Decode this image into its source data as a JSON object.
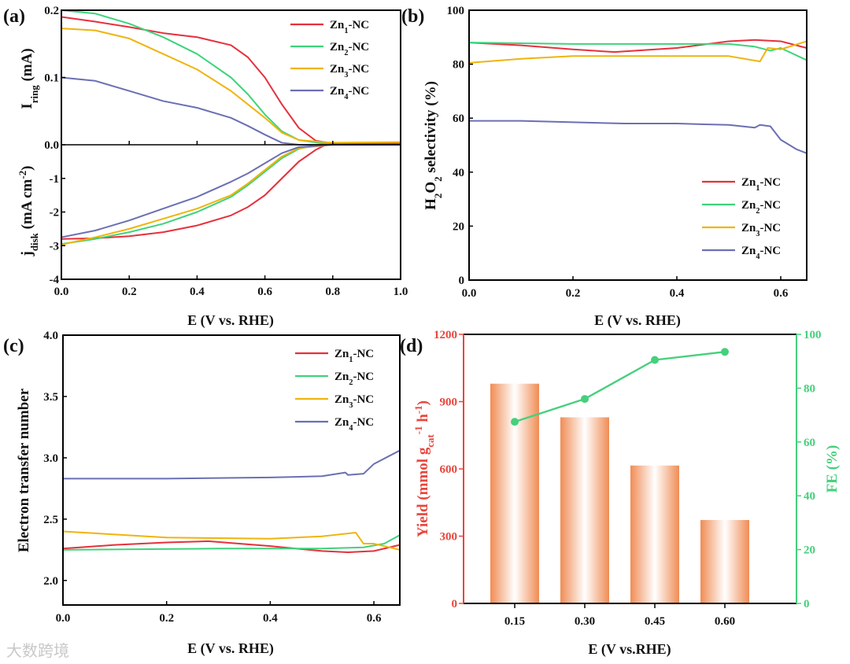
{
  "colors": {
    "Zn1-NC": "#e6303c",
    "Zn2-NC": "#3ed37c",
    "Zn3-NC": "#efb40c",
    "Zn4-NC": "#6b6fb3",
    "bar": "#f08c55",
    "yield_axis": "#e8453c",
    "fe_axis": "#45d07c"
  },
  "watermark": "大数跨境",
  "chart_data": [
    {
      "panel": "(a)",
      "type": "line",
      "xlabel": [
        {
          "t": "E (V vs. RHE)"
        }
      ],
      "ylabel_top": [
        {
          "t": "I"
        },
        {
          "t": "ring",
          "sub": true
        },
        {
          "t": " (mA)"
        }
      ],
      "ylabel_bottom": [
        {
          "t": "j"
        },
        {
          "t": "disk",
          "sub": true
        },
        {
          "t": " (mA cm"
        },
        {
          "t": "-2",
          "sup": true
        },
        {
          "t": ")"
        }
      ],
      "xlim": [
        0,
        1.0
      ],
      "xticks": [
        "0.0",
        "0.2",
        "0.4",
        "0.6",
        "0.8",
        "1.0"
      ],
      "ylim_ring": [
        0,
        0.2
      ],
      "yticks_ring": [
        "0.0",
        "0.1",
        "0.2"
      ],
      "ylim_disk": [
        -4,
        0
      ],
      "yticks_disk": [
        "-1",
        "-2",
        "-3",
        "-4"
      ],
      "legend": "top-right",
      "ring_series": [
        {
          "name": "Zn1-NC",
          "x": [
            0,
            0.1,
            0.2,
            0.3,
            0.4,
            0.5,
            0.55,
            0.6,
            0.65,
            0.7,
            0.75,
            0.8,
            1.0
          ],
          "y": [
            0.19,
            0.183,
            0.175,
            0.166,
            0.16,
            0.148,
            0.13,
            0.1,
            0.06,
            0.025,
            0.006,
            0.002,
            0.002
          ]
        },
        {
          "name": "Zn2-NC",
          "x": [
            0,
            0.1,
            0.2,
            0.3,
            0.4,
            0.5,
            0.55,
            0.6,
            0.65,
            0.7,
            0.8,
            0.95
          ],
          "y": [
            0.2,
            0.195,
            0.18,
            0.16,
            0.135,
            0.1,
            0.075,
            0.045,
            0.02,
            0.007,
            0,
            0
          ]
        },
        {
          "name": "Zn3-NC",
          "x": [
            0,
            0.1,
            0.2,
            0.3,
            0.4,
            0.5,
            0.55,
            0.6,
            0.65,
            0.7,
            0.8,
            1.0
          ],
          "y": [
            0.173,
            0.17,
            0.158,
            0.135,
            0.112,
            0.08,
            0.06,
            0.04,
            0.018,
            0.007,
            0.003,
            0.004
          ]
        },
        {
          "name": "Zn4-NC",
          "x": [
            0,
            0.1,
            0.2,
            0.3,
            0.4,
            0.5,
            0.55,
            0.6,
            0.65,
            0.7,
            0.8,
            1.0
          ],
          "y": [
            0.1,
            0.095,
            0.08,
            0.065,
            0.055,
            0.04,
            0.028,
            0.015,
            0.003,
            0,
            0,
            0
          ]
        }
      ],
      "disk_series": [
        {
          "name": "Zn1-NC",
          "x": [
            0,
            0.1,
            0.2,
            0.3,
            0.4,
            0.5,
            0.55,
            0.6,
            0.65,
            0.7,
            0.75,
            0.78,
            1.0
          ],
          "y": [
            -2.8,
            -2.78,
            -2.72,
            -2.6,
            -2.4,
            -2.1,
            -1.85,
            -1.5,
            -1.0,
            -0.5,
            -0.15,
            0,
            0
          ]
        },
        {
          "name": "Zn2-NC",
          "x": [
            0,
            0.1,
            0.2,
            0.3,
            0.4,
            0.5,
            0.55,
            0.6,
            0.65,
            0.7,
            0.75,
            0.8,
            0.95
          ],
          "y": [
            -2.95,
            -2.8,
            -2.6,
            -2.35,
            -2.0,
            -1.55,
            -1.2,
            -0.8,
            -0.4,
            -0.12,
            -0.02,
            0,
            0
          ]
        },
        {
          "name": "Zn3-NC",
          "x": [
            0,
            0.1,
            0.2,
            0.3,
            0.4,
            0.5,
            0.55,
            0.6,
            0.65,
            0.7,
            0.8,
            1.0
          ],
          "y": [
            -2.97,
            -2.75,
            -2.5,
            -2.2,
            -1.9,
            -1.5,
            -1.15,
            -0.75,
            -0.35,
            -0.1,
            0,
            0
          ]
        },
        {
          "name": "Zn4-NC",
          "x": [
            0,
            0.1,
            0.2,
            0.3,
            0.4,
            0.5,
            0.55,
            0.6,
            0.65,
            0.7,
            0.8,
            1.0
          ],
          "y": [
            -2.75,
            -2.55,
            -2.25,
            -1.9,
            -1.55,
            -1.1,
            -0.85,
            -0.55,
            -0.25,
            -0.07,
            0,
            0
          ]
        }
      ]
    },
    {
      "panel": "(b)",
      "type": "line",
      "xlabel": [
        {
          "t": "E (V vs. RHE)"
        }
      ],
      "ylabel": [
        {
          "t": "H"
        },
        {
          "t": "2",
          "sub": true
        },
        {
          "t": "O"
        },
        {
          "t": "2",
          "sub": true
        },
        {
          "t": " selectivity (%)"
        }
      ],
      "xlim": [
        0,
        0.65
      ],
      "xticks": [
        "0.0",
        "0.2",
        "0.4",
        "0.6"
      ],
      "ylim": [
        0,
        100
      ],
      "yticks": [
        "0",
        "20",
        "40",
        "60",
        "80",
        "100"
      ],
      "legend": "bottom-right",
      "series": [
        {
          "name": "Zn1-NC",
          "x": [
            0,
            0.1,
            0.2,
            0.28,
            0.4,
            0.5,
            0.55,
            0.6,
            0.65
          ],
          "y": [
            88,
            87,
            85.5,
            84.5,
            86,
            88.5,
            89,
            88.5,
            86
          ]
        },
        {
          "name": "Zn2-NC",
          "x": [
            0,
            0.2,
            0.4,
            0.5,
            0.55,
            0.58,
            0.6,
            0.65
          ],
          "y": [
            88,
            87.5,
            87.5,
            87.5,
            86.5,
            85,
            86,
            81.5
          ]
        },
        {
          "name": "Zn3-NC",
          "x": [
            0,
            0.1,
            0.2,
            0.3,
            0.4,
            0.5,
            0.56,
            0.575,
            0.6,
            0.65
          ],
          "y": [
            80.5,
            82,
            83,
            83,
            83,
            83,
            81,
            86,
            85.5,
            88.5
          ]
        },
        {
          "name": "Zn4-NC",
          "x": [
            0,
            0.1,
            0.2,
            0.3,
            0.4,
            0.5,
            0.55,
            0.56,
            0.58,
            0.6,
            0.63,
            0.65
          ],
          "y": [
            59,
            59,
            58.5,
            58,
            58,
            57.5,
            56.5,
            57.5,
            57,
            52,
            48.5,
            47
          ]
        }
      ]
    },
    {
      "panel": "(c)",
      "type": "line",
      "xlabel": [
        {
          "t": "E (V vs. RHE)"
        }
      ],
      "ylabel": [
        {
          "t": "Electron transfer number"
        }
      ],
      "xlim": [
        0,
        0.65
      ],
      "xticks": [
        "0.0",
        "0.2",
        "0.4",
        "0.6"
      ],
      "ylim": [
        1.8,
        4.0
      ],
      "yticks": [
        "2.0",
        "2.5",
        "3.0",
        "3.5",
        "4.0"
      ],
      "legend": "top-right",
      "series": [
        {
          "name": "Zn1-NC",
          "x": [
            0,
            0.1,
            0.2,
            0.28,
            0.4,
            0.5,
            0.55,
            0.6,
            0.65
          ],
          "y": [
            2.26,
            2.29,
            2.31,
            2.32,
            2.28,
            2.24,
            2.23,
            2.24,
            2.29
          ]
        },
        {
          "name": "Zn2-NC",
          "x": [
            0,
            0.3,
            0.5,
            0.58,
            0.62,
            0.65
          ],
          "y": [
            2.25,
            2.26,
            2.26,
            2.27,
            2.3,
            2.37
          ]
        },
        {
          "name": "Zn3-NC",
          "x": [
            0,
            0.2,
            0.4,
            0.5,
            0.565,
            0.58,
            0.6,
            0.65
          ],
          "y": [
            2.4,
            2.35,
            2.34,
            2.36,
            2.39,
            2.3,
            2.3,
            2.25
          ]
        },
        {
          "name": "Zn4-NC",
          "x": [
            0,
            0.2,
            0.4,
            0.5,
            0.545,
            0.55,
            0.58,
            0.6,
            0.65
          ],
          "y": [
            2.83,
            2.83,
            2.84,
            2.85,
            2.88,
            2.86,
            2.87,
            2.95,
            3.06
          ]
        }
      ]
    },
    {
      "panel": "(d)",
      "type": "bar+line",
      "xlabel": [
        {
          "t": "E (V vs.RHE)"
        }
      ],
      "ylabel_left": [
        {
          "t": "Yield (mmol g"
        },
        {
          "t": "cat",
          "sub": true
        },
        {
          "t": "-1",
          "sup": true
        },
        {
          "t": " h"
        },
        {
          "t": "-1",
          "sup": true
        },
        {
          "t": ")"
        }
      ],
      "ylabel_right": [
        {
          "t": "FE (%)"
        }
      ],
      "categories": [
        "0.15",
        "0.30",
        "0.45",
        "0.60"
      ],
      "yield": [
        980,
        830,
        615,
        372
      ],
      "fe": [
        67.5,
        76,
        90.5,
        93.5
      ],
      "ylim_left": [
        0,
        1200
      ],
      "yticks_left": [
        "0",
        "300",
        "600",
        "900",
        "1200"
      ],
      "ylim_right": [
        0,
        100
      ],
      "yticks_right": [
        "0",
        "20",
        "40",
        "60",
        "80",
        "100"
      ]
    }
  ]
}
